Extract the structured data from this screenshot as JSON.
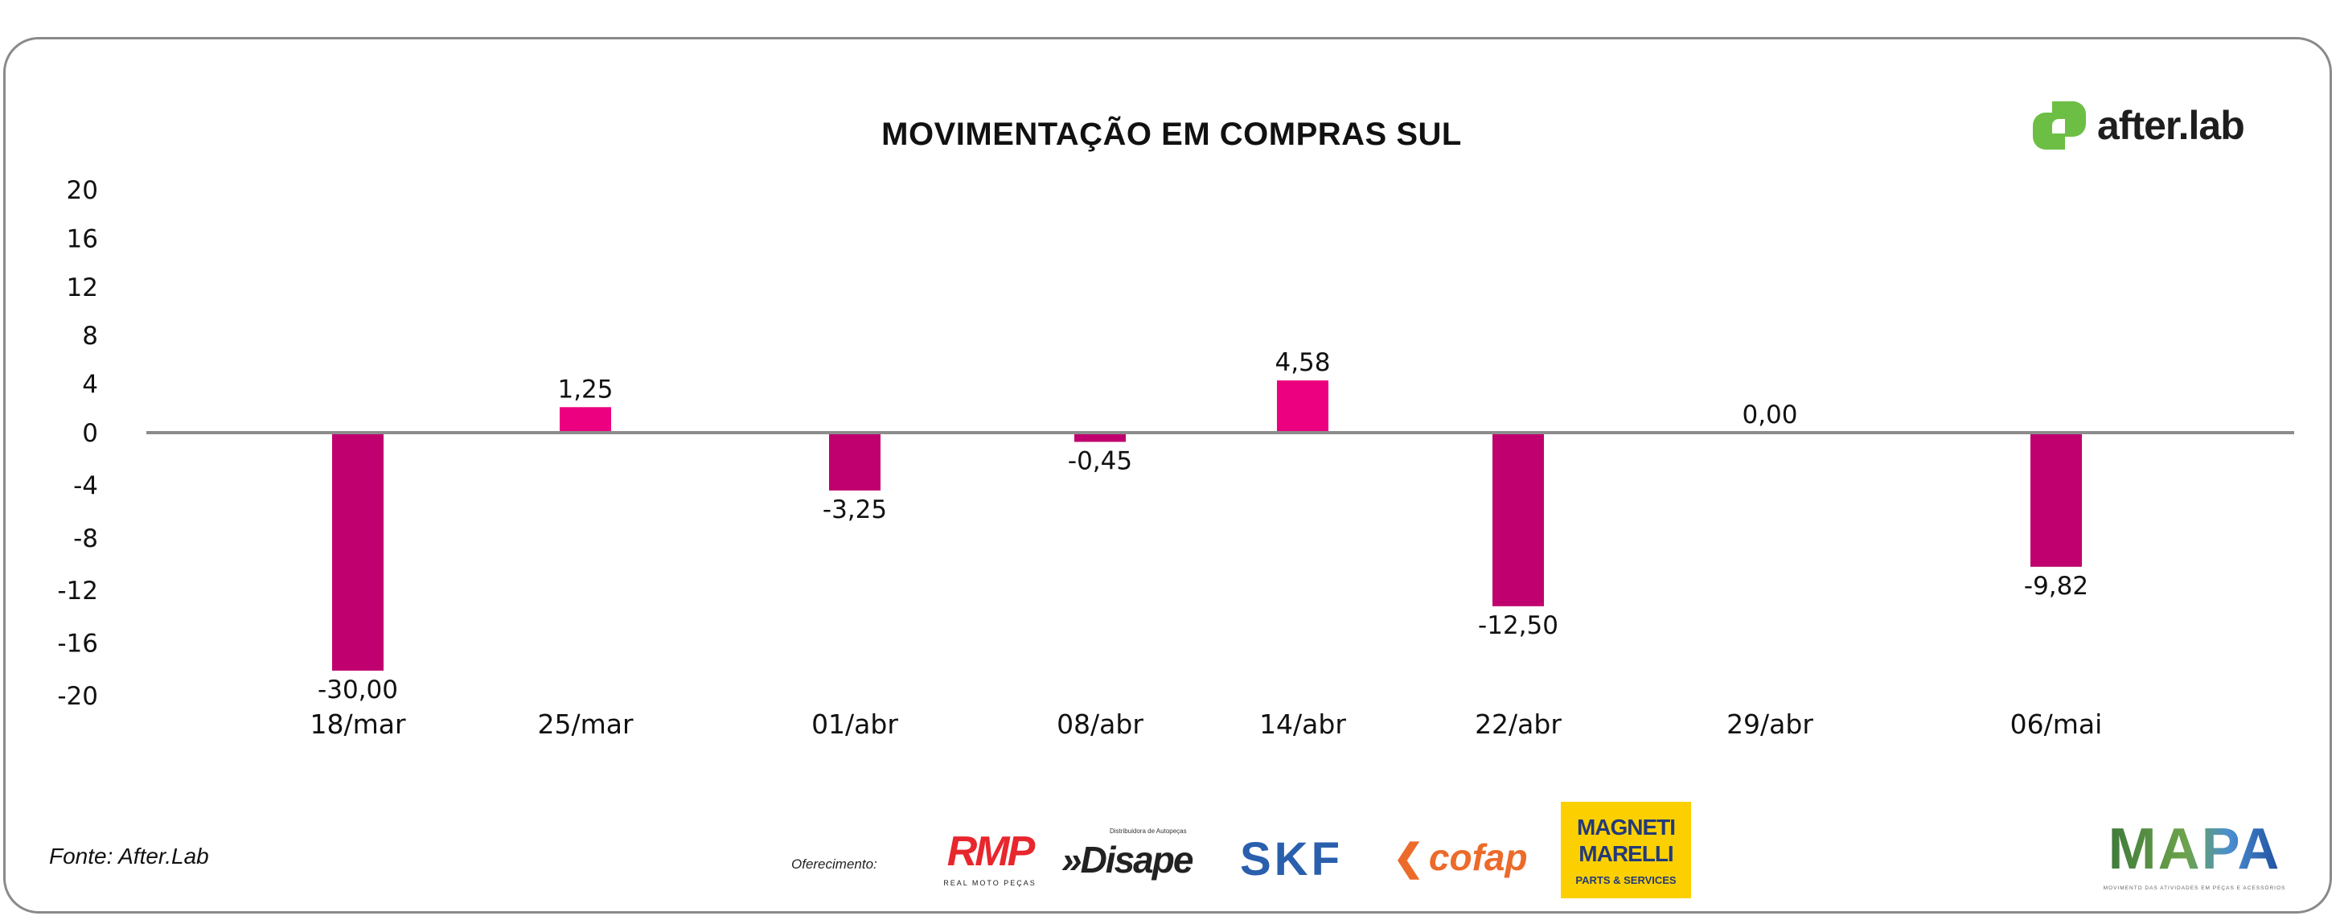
{
  "title": "MOVIMENTAÇÃO EM COMPRAS SUL",
  "brand": "after.lab",
  "source": "Fonte: After.Lab",
  "sponsors_label": "Oferecimento:",
  "sponsors": {
    "rmp": {
      "name": "RMP",
      "tagline": "REAL MOTO PEÇAS"
    },
    "disape": {
      "name": "»Disape",
      "tagline": "Distribuidora de Autopeças"
    },
    "skf": {
      "name": "SKF"
    },
    "cofap": {
      "name": "cofap"
    },
    "magneti": {
      "name": "MAGNETI MARELLI",
      "tagline": "PARTS & SERVICES"
    }
  },
  "mapa": {
    "name": "MAPA",
    "tagline": "MOVIMENTO DAS ATIVIDADES EM PEÇAS E ACESSÓRIOS"
  },
  "chart_data": {
    "type": "bar",
    "title": "MOVIMENTAÇÃO EM COMPRAS SUL",
    "xlabel": "",
    "ylabel": "",
    "categories": [
      "18/mar",
      "25/mar",
      "01/abr",
      "08/abr",
      "14/abr",
      "22/abr",
      "29/abr",
      "06/mai"
    ],
    "values": [
      -30.0,
      1.25,
      -3.25,
      -0.45,
      4.58,
      -12.5,
      0.0,
      -9.82
    ],
    "value_labels": [
      "-30,00",
      "1,25",
      "-3,25",
      "-0,45",
      "4,58",
      "-12,50",
      "0,00",
      "-9,82"
    ],
    "bar_extent_read_from_axis": [
      -18.1,
      2.1,
      -4.4,
      -0.7,
      4.3,
      -13.2,
      0,
      -10.2
    ],
    "ylim": [
      -20,
      20
    ],
    "yticks": [
      20,
      16,
      12,
      8,
      4,
      0,
      -4,
      -8,
      -12,
      -16,
      -20
    ],
    "grid": false,
    "legend": "none",
    "colors": {
      "negative": "#C0006E",
      "positive": "#EC0080",
      "axis": "#8c8c8c"
    }
  }
}
